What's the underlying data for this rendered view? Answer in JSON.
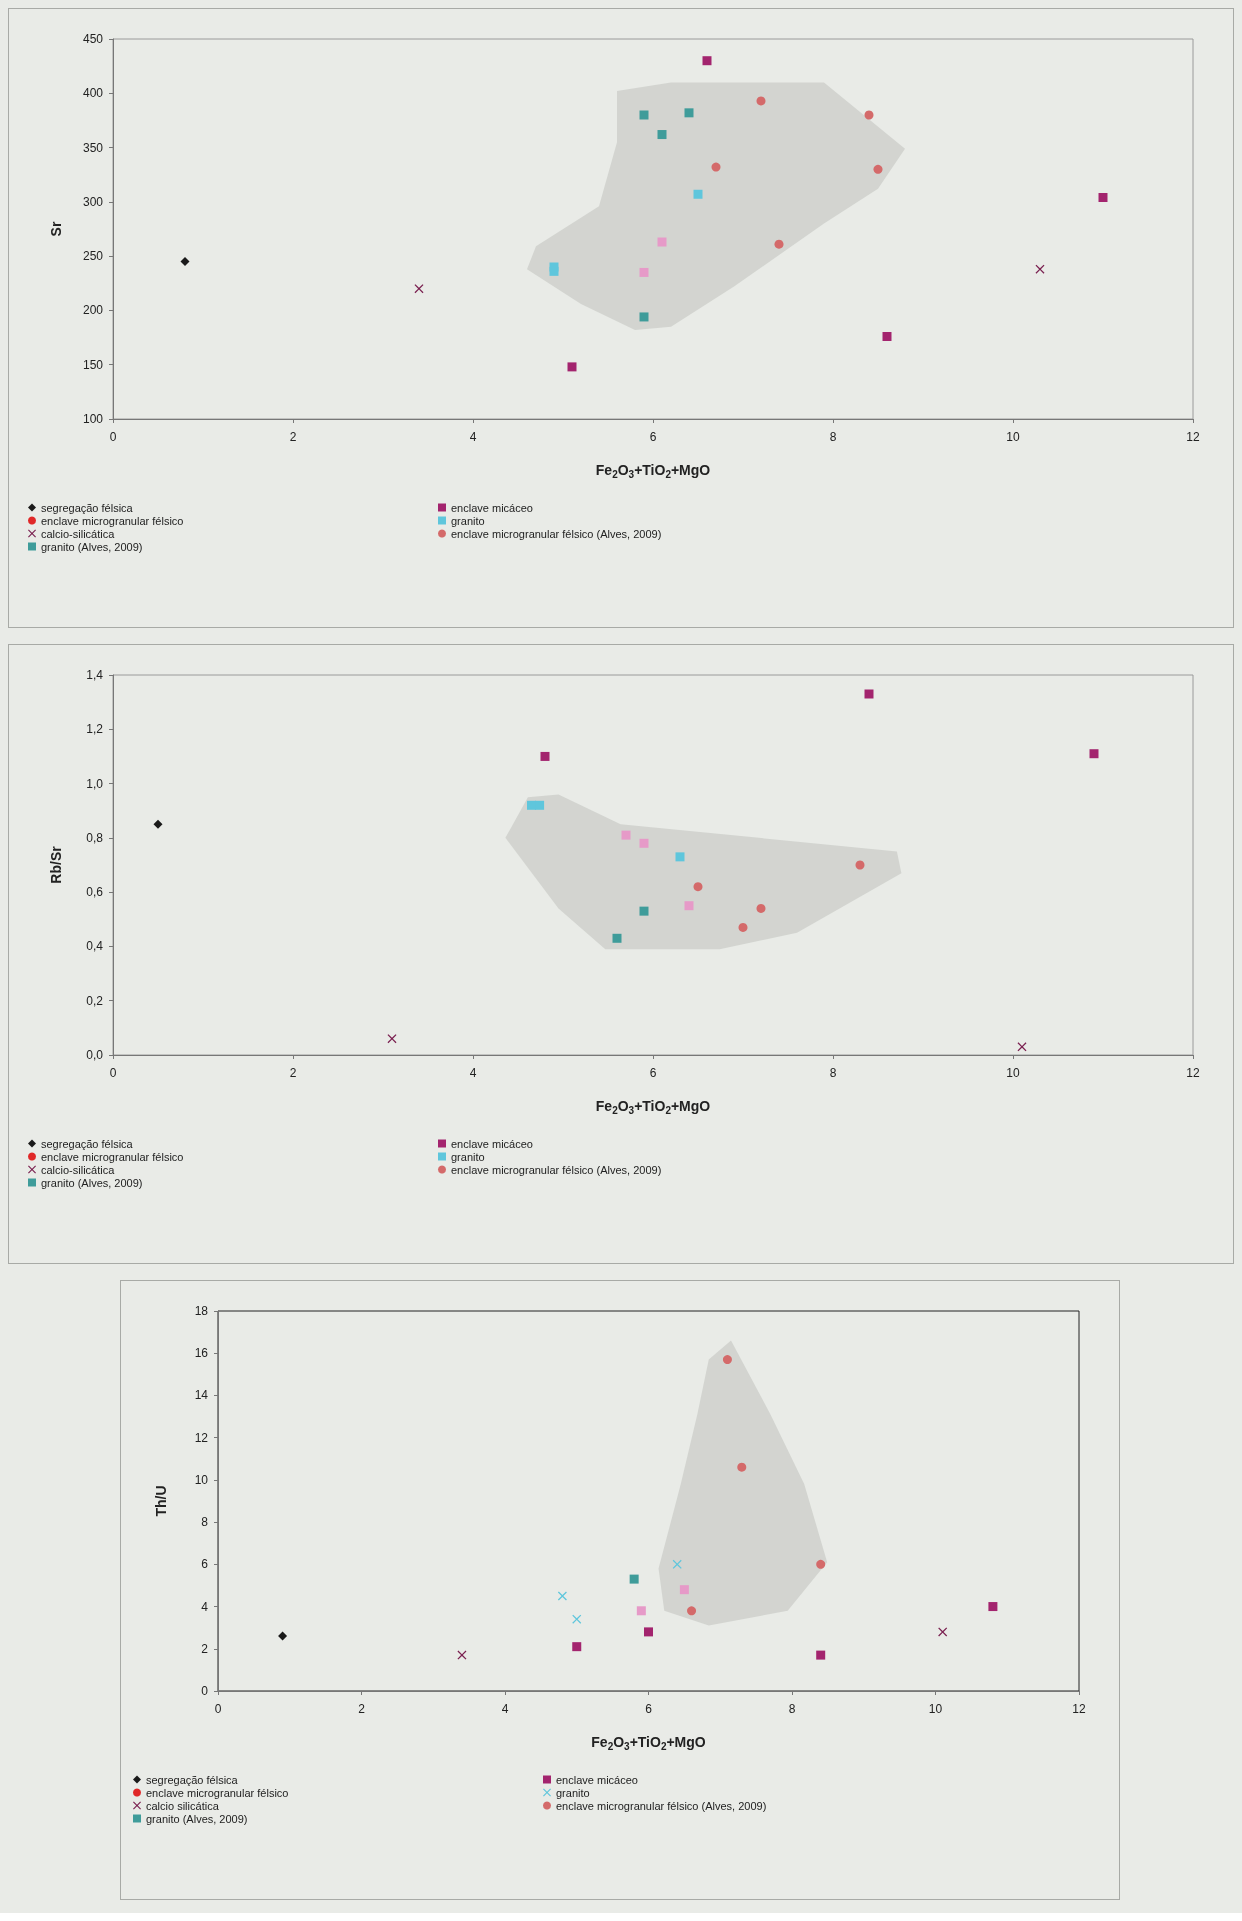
{
  "chart_data": [
    {
      "type": "scatter",
      "xlabel": "Fe$_{2}$O$_{3}$+TiO$_{2}$+MgO",
      "ylabel": "Sr",
      "xlim": [
        0,
        12
      ],
      "xticks": [
        0,
        2,
        4,
        6,
        8,
        10,
        12
      ],
      "ylim": [
        100,
        450
      ],
      "yticks": [
        100,
        150,
        200,
        250,
        300,
        350,
        400,
        450
      ],
      "legend": "bottom",
      "series": [
        {
          "type": "area",
          "color": "#c9cbc6",
          "x": [
            7.9,
            8.8,
            8.5,
            7.9,
            6.9,
            6.2,
            5.8,
            5.2,
            4.6,
            4.7,
            5.4,
            5.6,
            5.6,
            6.2
          ],
          "values": [
            410,
            349,
            312,
            280,
            222,
            185,
            182,
            206,
            238,
            259,
            296,
            355,
            402,
            410
          ]
        },
        {
          "name": "segregação félsica",
          "marker": "diamond",
          "color": "#1a1a1a",
          "x": [
            0.8
          ],
          "values": [
            245
          ]
        },
        {
          "name": "enclave microgranular félsico",
          "marker": "circle",
          "color": "#e02828"
        },
        {
          "name": "calcio-silicática",
          "marker": "cross",
          "color": "#7a2050",
          "x": [
            3.4,
            10.3
          ],
          "values": [
            220,
            238
          ]
        },
        {
          "name": "granito (Alves, 2009)",
          "marker": "square",
          "color": "#3f9c9a",
          "x": [
            6.4,
            6.1,
            5.9,
            5.9
          ],
          "values": [
            382,
            362,
            380,
            194
          ]
        },
        {
          "name": "enclave micáceo",
          "marker": "square",
          "color": "#a3246e",
          "x": [
            6.6,
            11.0,
            8.6,
            5.1
          ],
          "values": [
            430,
            304,
            176,
            148
          ]
        },
        {
          "name": "granito",
          "marker": "square",
          "color": "#5fc6dc",
          "x": [
            6.5,
            4.9,
            4.9
          ],
          "values": [
            307,
            240,
            236
          ]
        },
        {
          "name": "enclave microgranular félsico (Alves, 2009)",
          "marker": "circle",
          "color": "#d46a6a",
          "x": [
            8.4,
            8.5,
            7.2,
            7.4,
            6.7
          ],
          "values": [
            380,
            330,
            393,
            261,
            332
          ]
        },
        {
          "marker": "square",
          "color": "#e69ac8",
          "x": [
            6.1,
            5.9
          ],
          "values": [
            263,
            235
          ]
        }
      ]
    },
    {
      "type": "scatter",
      "xlabel": "Fe$_{2}$O$_{3}$+TiO$_{2}$+MgO",
      "ylabel": "Rb/Sr",
      "xlim": [
        0,
        12
      ],
      "xticks": [
        0,
        2,
        4,
        6,
        8,
        10,
        12
      ],
      "ylim": [
        0,
        1.4
      ],
      "yticks": [
        {
          "value": 0,
          "label": "0,0"
        },
        {
          "value": 0.2,
          "label": "0,2"
        },
        {
          "value": 0.4,
          "label": "0,4"
        },
        {
          "value": 0.6,
          "label": "0,6"
        },
        {
          "value": 0.8,
          "label": "0,8"
        },
        {
          "value": 1,
          "label": "1,0"
        },
        {
          "value": 1.2,
          "label": "1,2"
        },
        {
          "value": 1.4,
          "label": "1,4"
        }
      ],
      "legend": "bottom",
      "series": [
        {
          "type": "area",
          "color": "#c9cbc6",
          "x": [
            4.95,
            5.64,
            8.71,
            8.76,
            7.6,
            6.74,
            5.47,
            4.95,
            4.36,
            4.61
          ],
          "values": [
            0.96,
            0.85,
            0.75,
            0.67,
            0.45,
            0.39,
            0.39,
            0.54,
            0.8,
            0.95
          ]
        },
        {
          "name": "segregação félsica",
          "marker": "diamond",
          "color": "#1a1a1a",
          "x": [
            0.5
          ],
          "values": [
            0.85
          ]
        },
        {
          "name": "enclave microgranular félsico",
          "marker": "circle",
          "color": "#e02828"
        },
        {
          "name": "calcio-silicática",
          "marker": "cross",
          "color": "#7a2050",
          "x": [
            3.1,
            10.1
          ],
          "values": [
            0.06,
            0.03
          ]
        },
        {
          "name": "granito (Alves, 2009)",
          "marker": "square",
          "color": "#3f9c9a",
          "x": [
            5.9,
            5.6
          ],
          "values": [
            0.53,
            0.43
          ]
        },
        {
          "name": "enclave micáceo",
          "marker": "square",
          "color": "#a3246e",
          "x": [
            8.4,
            10.9,
            4.8
          ],
          "values": [
            1.33,
            1.11,
            1.1
          ]
        },
        {
          "name": "granito",
          "marker": "square",
          "color": "#5fc6dc",
          "x": [
            6.3,
            4.65,
            4.74
          ],
          "values": [
            0.73,
            0.92,
            0.92
          ]
        },
        {
          "name": "enclave microgranular félsico (Alves, 2009)",
          "marker": "circle",
          "color": "#d46a6a",
          "x": [
            8.3,
            7.2,
            7.0,
            6.5
          ],
          "values": [
            0.7,
            0.54,
            0.47,
            0.62
          ]
        },
        {
          "marker": "square",
          "color": "#e69ac8",
          "x": [
            5.7,
            5.9,
            6.4
          ],
          "values": [
            0.81,
            0.78,
            0.55
          ]
        }
      ]
    },
    {
      "type": "scatter",
      "xlabel": "Fe$_{2}$O$_{3}$+TiO$_{2}$+MgO",
      "ylabel": "Th/U",
      "xlim": [
        0,
        12
      ],
      "xticks": [
        0,
        2,
        4,
        6,
        8,
        10,
        12
      ],
      "ylim": [
        0,
        18
      ],
      "yticks": [
        0,
        2,
        4,
        6,
        8,
        10,
        12,
        14,
        16,
        18
      ],
      "legend": "bottom",
      "series": [
        {
          "type": "area",
          "color": "#c9cbc6",
          "x": [
            7.15,
            7.7,
            8.17,
            8.49,
            7.94,
            6.84,
            6.22,
            6.14,
            6.45,
            6.68,
            6.84
          ],
          "values": [
            16.6,
            13.1,
            9.8,
            6.1,
            3.8,
            3.1,
            3.8,
            5.8,
            9.8,
            13.1,
            15.7
          ]
        },
        {
          "name": "segregação félsica",
          "marker": "diamond",
          "color": "#1a1a1a",
          "x": [
            0.9
          ],
          "values": [
            2.6
          ]
        },
        {
          "name": "enclave microgranular félsico",
          "marker": "circle",
          "color": "#e02828"
        },
        {
          "name": "calcio silicática",
          "marker": "cross",
          "color": "#7a2050",
          "x": [
            3.4,
            10.1
          ],
          "values": [
            1.7,
            2.8
          ]
        },
        {
          "name": "granito (Alves, 2009)",
          "marker": "square",
          "color": "#3f9c9a",
          "x": [
            5.8
          ],
          "values": [
            5.3
          ]
        },
        {
          "name": "enclave micáceo",
          "marker": "square",
          "color": "#a3246e",
          "x": [
            10.8,
            8.4,
            6.0,
            5.0
          ],
          "values": [
            4.0,
            1.7,
            2.8,
            2.1
          ]
        },
        {
          "name": "granito",
          "marker": "cross",
          "color": "#5fc6dc",
          "x": [
            4.8,
            5.0,
            6.4
          ],
          "values": [
            4.5,
            3.4,
            6.0
          ]
        },
        {
          "name": "enclave microgranular félsico (Alves, 2009)",
          "marker": "circle",
          "color": "#d46a6a",
          "x": [
            7.1,
            7.3,
            8.4,
            6.6
          ],
          "values": [
            15.7,
            10.6,
            6.0,
            3.8
          ]
        },
        {
          "marker": "square",
          "color": "#e69ac8",
          "x": [
            6.5,
            5.9
          ],
          "values": [
            4.8,
            3.8
          ]
        }
      ]
    }
  ]
}
